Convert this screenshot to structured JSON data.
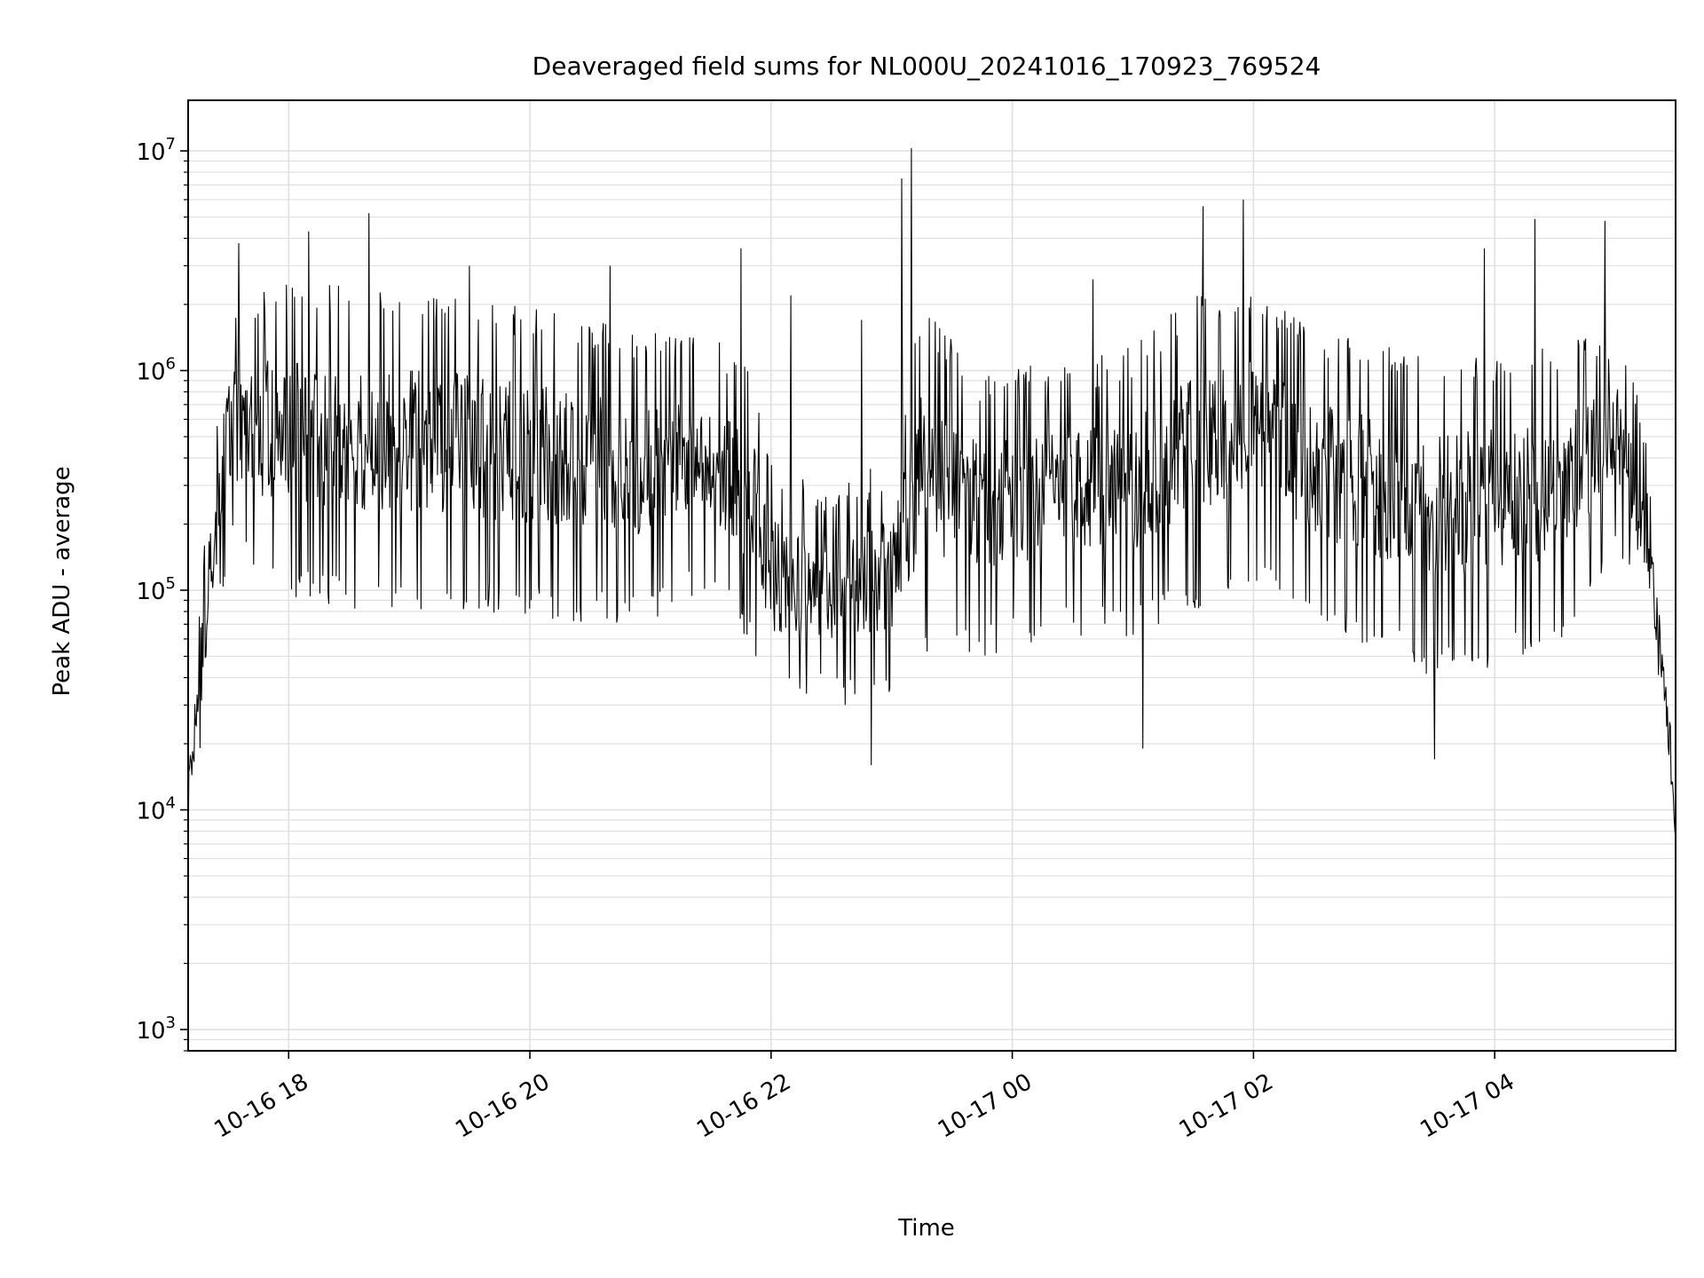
{
  "chart_data": {
    "type": "line",
    "title": "Deaveraged field sums for NL000U_20241016_170923_769524",
    "xlabel": "Time",
    "ylabel": "Peak ADU - average",
    "yscale": "log",
    "ylim": [
      800,
      17000000
    ],
    "xlim": [
      "2024-10-16 17:10",
      "2024-10-17 05:30"
    ],
    "grid": true,
    "line_color": "#000000",
    "grid_color": "#e0e0e0",
    "x_ticks": [
      {
        "t": "2024-10-16 18:00",
        "label": "10-16 18"
      },
      {
        "t": "2024-10-16 20:00",
        "label": "10-16 20"
      },
      {
        "t": "2024-10-16 22:00",
        "label": "10-16 22"
      },
      {
        "t": "2024-10-17 00:00",
        "label": "10-17 00"
      },
      {
        "t": "2024-10-17 02:00",
        "label": "10-17 02"
      },
      {
        "t": "2024-10-17 04:00",
        "label": "10-17 04"
      }
    ],
    "y_ticks": [
      {
        "v": 1000,
        "base": "10",
        "exp": "3"
      },
      {
        "v": 10000,
        "base": "10",
        "exp": "4"
      },
      {
        "v": 100000,
        "base": "10",
        "exp": "5"
      },
      {
        "v": 1000000,
        "base": "10",
        "exp": "6"
      },
      {
        "v": 10000000,
        "base": "10",
        "exp": "7"
      }
    ],
    "envelope": [
      {
        "t": "2024-10-16 17:10",
        "lo": 6000,
        "hi": 20000
      },
      {
        "t": "2024-10-16 17:20",
        "lo": 30000,
        "hi": 300000
      },
      {
        "t": "2024-10-16 17:30",
        "lo": 150000,
        "hi": 1800000
      },
      {
        "t": "2024-10-16 17:45",
        "lo": 100000,
        "hi": 2500000
      },
      {
        "t": "2024-10-16 18:30",
        "lo": 80000,
        "hi": 2500000
      },
      {
        "t": "2024-10-16 19:30",
        "lo": 80000,
        "hi": 2200000
      },
      {
        "t": "2024-10-16 20:30",
        "lo": 70000,
        "hi": 1800000
      },
      {
        "t": "2024-10-16 21:00",
        "lo": 70000,
        "hi": 1500000
      },
      {
        "t": "2024-10-16 21:30",
        "lo": 100000,
        "hi": 1400000
      },
      {
        "t": "2024-10-16 21:50",
        "lo": 50000,
        "hi": 1200000
      },
      {
        "t": "2024-10-16 22:00",
        "lo": 30000,
        "hi": 400000
      },
      {
        "t": "2024-10-16 22:30",
        "lo": 30000,
        "hi": 300000
      },
      {
        "t": "2024-10-16 23:00",
        "lo": 30000,
        "hi": 400000
      },
      {
        "t": "2024-10-16 23:15",
        "lo": 50000,
        "hi": 2000000
      },
      {
        "t": "2024-10-16 23:45",
        "lo": 50000,
        "hi": 1000000
      },
      {
        "t": "2024-10-17 00:30",
        "lo": 60000,
        "hi": 1100000
      },
      {
        "t": "2024-10-17 01:00",
        "lo": 60000,
        "hi": 1300000
      },
      {
        "t": "2024-10-17 01:30",
        "lo": 80000,
        "hi": 2200000
      },
      {
        "t": "2024-10-17 02:00",
        "lo": 100000,
        "hi": 2500000
      },
      {
        "t": "2024-10-17 02:30",
        "lo": 70000,
        "hi": 1600000
      },
      {
        "t": "2024-10-17 03:30",
        "lo": 40000,
        "hi": 1200000
      },
      {
        "t": "2024-10-17 04:30",
        "lo": 50000,
        "hi": 1300000
      },
      {
        "t": "2024-10-17 05:00",
        "lo": 150000,
        "hi": 1600000
      },
      {
        "t": "2024-10-17 05:15",
        "lo": 60000,
        "hi": 600000
      },
      {
        "t": "2024-10-17 05:25",
        "lo": 20000,
        "hi": 60000
      },
      {
        "t": "2024-10-17 05:30",
        "lo": 6000,
        "hi": 10000
      }
    ],
    "spikes": [
      {
        "t": "2024-10-16 17:10",
        "v": 5500
      },
      {
        "t": "2024-10-16 17:35",
        "v": 3800000
      },
      {
        "t": "2024-10-16 18:10",
        "v": 4300000
      },
      {
        "t": "2024-10-16 18:40",
        "v": 5200000
      },
      {
        "t": "2024-10-16 19:30",
        "v": 3000000
      },
      {
        "t": "2024-10-16 20:40",
        "v": 3000000
      },
      {
        "t": "2024-10-16 21:45",
        "v": 3600000
      },
      {
        "t": "2024-10-16 22:10",
        "v": 2200000
      },
      {
        "t": "2024-10-16 22:45",
        "v": 1700000
      },
      {
        "t": "2024-10-16 22:50",
        "v": 16000
      },
      {
        "t": "2024-10-16 23:05",
        "v": 7500000
      },
      {
        "t": "2024-10-16 23:10",
        "v": 10300000
      },
      {
        "t": "2024-10-17 00:40",
        "v": 2600000
      },
      {
        "t": "2024-10-17 01:05",
        "v": 19000
      },
      {
        "t": "2024-10-17 01:35",
        "v": 5600000
      },
      {
        "t": "2024-10-17 01:55",
        "v": 6000000
      },
      {
        "t": "2024-10-17 03:30",
        "v": 17000
      },
      {
        "t": "2024-10-17 03:55",
        "v": 3600000
      },
      {
        "t": "2024-10-17 04:20",
        "v": 4900000
      },
      {
        "t": "2024-10-17 04:55",
        "v": 4800000
      }
    ]
  }
}
